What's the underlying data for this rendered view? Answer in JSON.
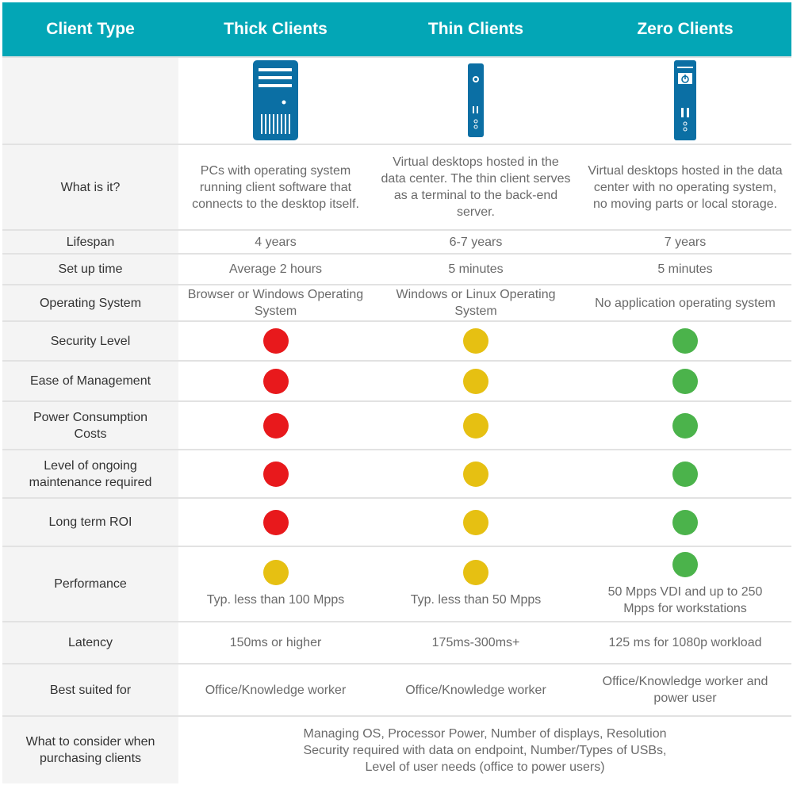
{
  "header": {
    "col0": "Client Type",
    "col1": "Thick Clients",
    "col2": "Thin Clients",
    "col3": "Zero Clients"
  },
  "icons": [
    "desktop-tower-icon",
    "thin-client-icon",
    "zero-client-icon"
  ],
  "colors": {
    "header": "#03a6b6",
    "red": "#e8191c",
    "yellow": "#e6c012",
    "green": "#4bb34b",
    "icon": "#0b6fa4"
  },
  "rows": [
    {
      "label": "What is it?",
      "values": [
        "PCs with operating system running client software that connects to the desktop itself.",
        "Virtual desktops hosted in the data center. The thin client serves as a terminal to the back-end server.",
        "Virtual desktops hosted in the data center with no operating system, no moving parts or local storage."
      ]
    },
    {
      "label": "Lifespan",
      "values": [
        "4 years",
        "6-7 years",
        "7 years"
      ]
    },
    {
      "label": "Set up time",
      "values": [
        "Average 2 hours",
        "5 minutes",
        "5 minutes"
      ]
    },
    {
      "label": "Operating System",
      "values": [
        "Browser or Windows Operating System",
        "Windows or Linux Operating System",
        "No application operating system"
      ]
    }
  ],
  "ratings": [
    {
      "label": "Security Level",
      "values": [
        "red",
        "yellow",
        "green"
      ]
    },
    {
      "label": "Ease of Management",
      "values": [
        "red",
        "yellow",
        "green"
      ]
    },
    {
      "label": "Power Consumption Costs",
      "values": [
        "red",
        "yellow",
        "green"
      ]
    },
    {
      "label": "Level of ongoing maintenance required",
      "values": [
        "red",
        "yellow",
        "green"
      ]
    },
    {
      "label": "Long term ROI",
      "values": [
        "red",
        "yellow",
        "green"
      ]
    }
  ],
  "performance": {
    "label": "Performance",
    "ratings": [
      "yellow",
      "yellow",
      "green"
    ],
    "values": [
      "Typ. less than 100 Mpps",
      "Typ. less than 50 Mpps",
      "50 Mpps VDI and up to 250 Mpps for workstations"
    ]
  },
  "rows2": [
    {
      "label": "Latency",
      "values": [
        "150ms or higher",
        "175ms-300ms+",
        "125 ms for 1080p workload"
      ]
    },
    {
      "label": "Best suited for",
      "values": [
        "Office/Knowledge worker",
        "Office/Knowledge worker",
        "Office/Knowledge worker and power user"
      ]
    }
  ],
  "consider": {
    "label": "What to consider when purchasing clients",
    "lines": [
      "Managing OS, Processor Power, Number of displays, Resolution",
      "Security required with data on endpoint, Number/Types of USBs,",
      "Level of user needs (office to power users)"
    ]
  }
}
